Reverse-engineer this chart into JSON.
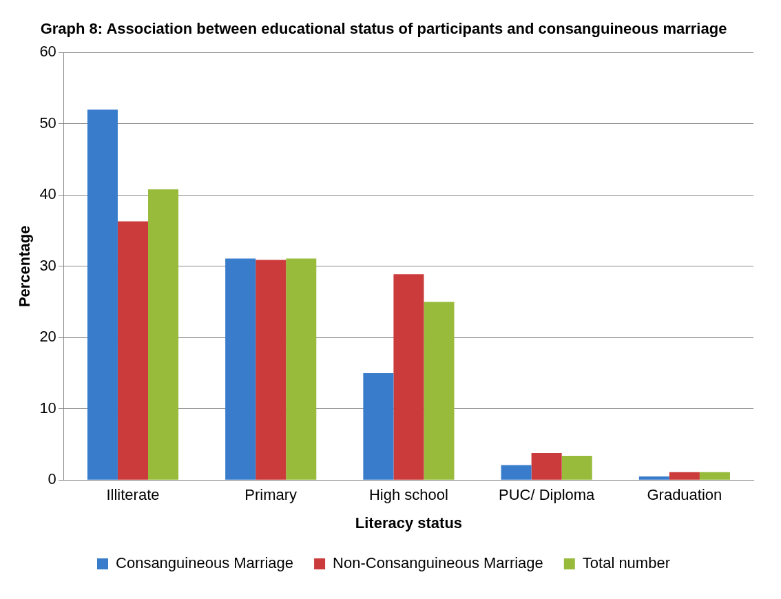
{
  "chart_data": {
    "type": "bar",
    "title": "Graph 8: Association between educational status of participants and consanguineous marriage",
    "xlabel": "Literacy status",
    "ylabel": "Percentage",
    "categories": [
      "Illiterate",
      "Primary",
      "High school",
      "PUC/ Diploma",
      "Graduation"
    ],
    "series": [
      {
        "name": "Consanguineous Marriage",
        "color": "#3a7ccc",
        "values": [
          52,
          31.1,
          15,
          2.1,
          0.5
        ]
      },
      {
        "name": "Non-Consanguineous Marriage",
        "color": "#cc3b3b",
        "values": [
          36.3,
          30.9,
          28.9,
          3.8,
          1.1
        ]
      },
      {
        "name": "Total number",
        "color": "#98bb3c",
        "values": [
          40.8,
          31.1,
          25,
          3.4,
          1.1
        ]
      }
    ],
    "ylim": [
      0,
      60
    ],
    "yticks": [
      0,
      10,
      20,
      30,
      40,
      50,
      60
    ],
    "grid": "y",
    "legend": "bottom"
  }
}
